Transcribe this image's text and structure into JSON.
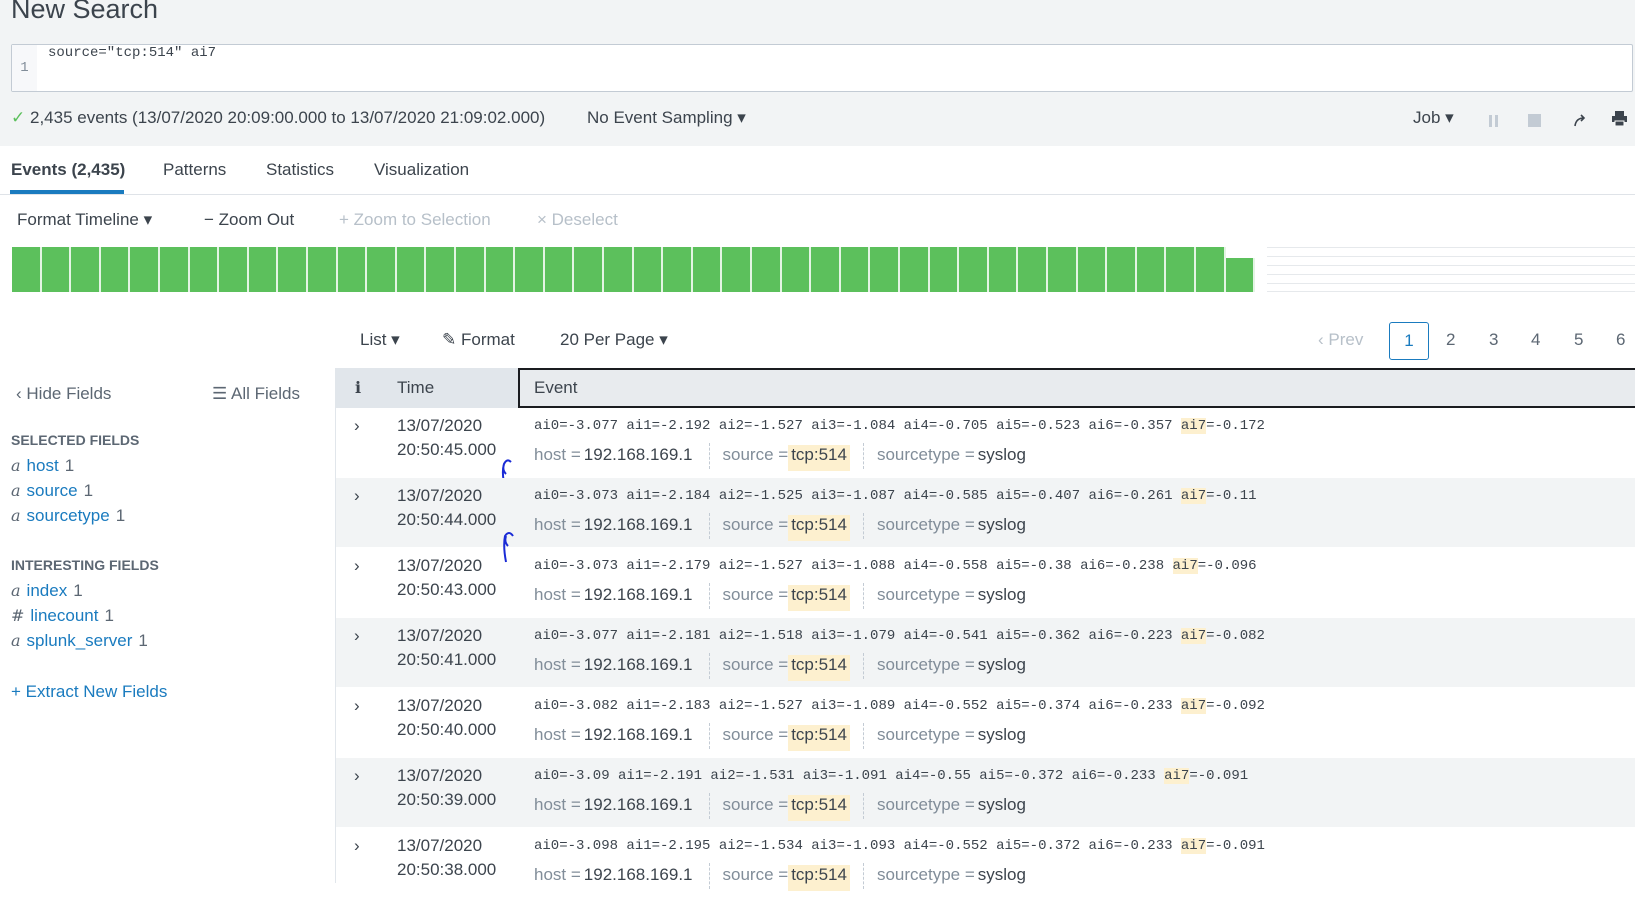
{
  "page_title": "New Search",
  "search": {
    "line_number": "1",
    "query": "source=\"tcp:514\"  ai7"
  },
  "status": {
    "check": "✓",
    "summary": "2,435 events (13/07/2020 20:09:00.000 to 13/07/2020 21:09:02.000)",
    "sampling": "No Event Sampling ▾",
    "job": "Job ▾"
  },
  "tabs": [
    "Events (2,435)",
    "Patterns",
    "Statistics",
    "Visualization"
  ],
  "timeline_toolbar": {
    "format": "Format Timeline ▾",
    "zoom_out": "− Zoom Out",
    "zoom_selection": "+ Zoom to Selection",
    "deselect": "× Deselect"
  },
  "timeline": {
    "bar_color": "#5cc05c",
    "relative_heights": [
      1,
      1,
      1,
      1,
      1,
      1,
      1,
      1,
      1,
      1,
      1,
      1,
      1,
      1,
      1,
      1,
      1,
      1,
      1,
      1,
      1,
      1,
      1,
      1,
      1,
      1,
      1,
      1,
      1,
      1,
      1,
      1,
      1,
      1,
      1,
      1,
      1,
      1,
      1,
      1,
      1,
      0.76
    ]
  },
  "results_toolbar": {
    "list": "List ▾",
    "format": "Format",
    "per_page": "20 Per Page ▾"
  },
  "pagination": {
    "prev": "‹ Prev",
    "pages": [
      "1",
      "2",
      "3",
      "4",
      "5",
      "6"
    ],
    "current": "1"
  },
  "sidebar": {
    "hide_fields": "‹ Hide Fields",
    "all_fields": "☰ All Fields",
    "selected_heading": "SELECTED FIELDS",
    "selected": [
      {
        "type": "a",
        "name": "host",
        "count": "1"
      },
      {
        "type": "a",
        "name": "source",
        "count": "1"
      },
      {
        "type": "a",
        "name": "sourcetype",
        "count": "1"
      }
    ],
    "interesting_heading": "INTERESTING FIELDS",
    "interesting": [
      {
        "type": "a",
        "name": "index",
        "count": "1"
      },
      {
        "type": "#",
        "name": "linecount",
        "count": "1"
      },
      {
        "type": "a",
        "name": "splunk_server",
        "count": "1"
      }
    ],
    "extract": "+ Extract New Fields"
  },
  "table": {
    "headers": {
      "info": "i",
      "time": "Time",
      "event": "Event"
    },
    "meta_labels": {
      "host": "host =",
      "source": "source =",
      "sourcetype": "sourcetype ="
    },
    "rows": [
      {
        "date": "13/07/2020",
        "time": "20:50:45.000",
        "pre": "ai0=-3.077 ai1=-2.192 ai2=-1.527 ai3=-1.084 ai4=-0.705 ai5=-0.523 ai6=-0.357 ",
        "hl": "ai7",
        "post": "=-0.172",
        "host": "192.168.169.1",
        "source": "tcp:514",
        "sourcetype": "syslog"
      },
      {
        "date": "13/07/2020",
        "time": "20:50:44.000",
        "pre": "ai0=-3.073 ai1=-2.184 ai2=-1.525 ai3=-1.087 ai4=-0.585 ai5=-0.407 ai6=-0.261 ",
        "hl": "ai7",
        "post": "=-0.11",
        "host": "192.168.169.1",
        "source": "tcp:514",
        "sourcetype": "syslog"
      },
      {
        "date": "13/07/2020",
        "time": "20:50:43.000",
        "pre": "ai0=-3.073 ai1=-2.179 ai2=-1.527 ai3=-1.088 ai4=-0.558 ai5=-0.38 ai6=-0.238 ",
        "hl": "ai7",
        "post": "=-0.096",
        "host": "192.168.169.1",
        "source": "tcp:514",
        "sourcetype": "syslog"
      },
      {
        "date": "13/07/2020",
        "time": "20:50:41.000",
        "pre": "ai0=-3.077 ai1=-2.181 ai2=-1.518 ai3=-1.079 ai4=-0.541 ai5=-0.362 ai6=-0.223 ",
        "hl": "ai7",
        "post": "=-0.082",
        "host": "192.168.169.1",
        "source": "tcp:514",
        "sourcetype": "syslog"
      },
      {
        "date": "13/07/2020",
        "time": "20:50:40.000",
        "pre": "ai0=-3.082 ai1=-2.183 ai2=-1.527 ai3=-1.089 ai4=-0.552 ai5=-0.374 ai6=-0.233 ",
        "hl": "ai7",
        "post": "=-0.092",
        "host": "192.168.169.1",
        "source": "tcp:514",
        "sourcetype": "syslog"
      },
      {
        "date": "13/07/2020",
        "time": "20:50:39.000",
        "pre": "ai0=-3.09 ai1=-2.191 ai2=-1.531 ai3=-1.091 ai4=-0.55 ai5=-0.372 ai6=-0.233 ",
        "hl": "ai7",
        "post": "=-0.091",
        "host": "192.168.169.1",
        "source": "tcp:514",
        "sourcetype": "syslog"
      },
      {
        "date": "13/07/2020",
        "time": "20:50:38.000",
        "pre": "ai0=-3.098 ai1=-2.195 ai2=-1.534 ai3=-1.093 ai4=-0.552 ai5=-0.372 ai6=-0.233 ",
        "hl": "ai7",
        "post": "=-0.091",
        "host": "192.168.169.1",
        "source": "tcp:514",
        "sourcetype": "syslog"
      }
    ]
  },
  "colors": {
    "accent": "#1a7bbf",
    "highlight": "#fdf0cf",
    "annotation": "#1a2bd6"
  }
}
